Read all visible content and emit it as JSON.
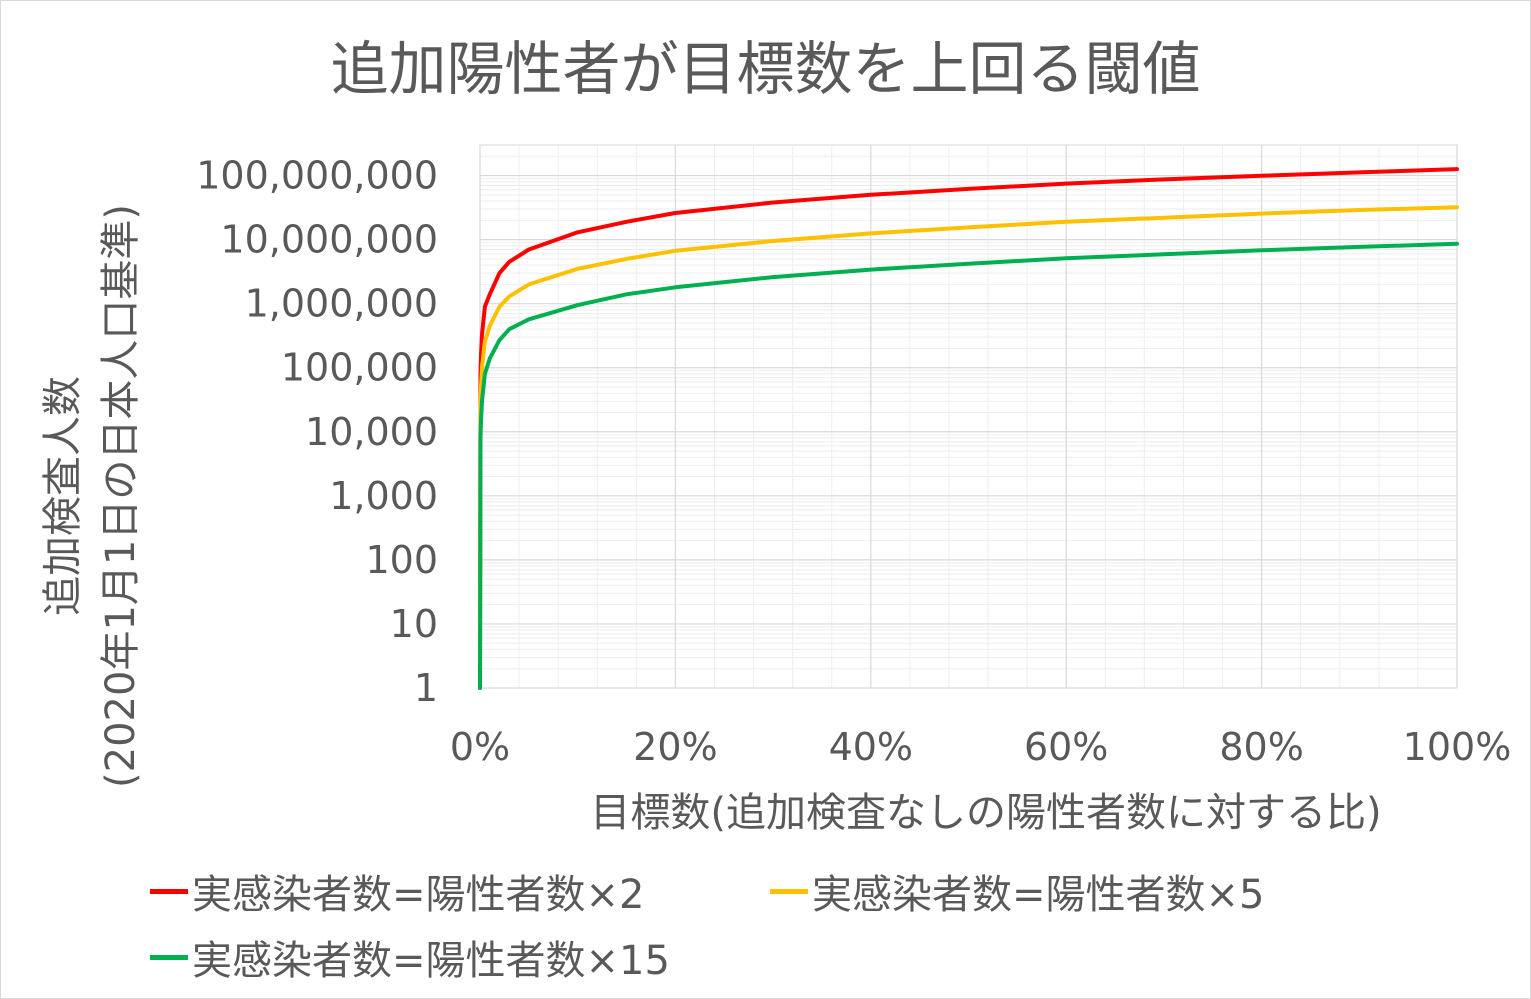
{
  "chart_data": {
    "type": "line",
    "title": "追加陽性者が目標数を上回る閾値",
    "ylabel_line1": "追加検査人数",
    "ylabel_line2": "(2020年1月1日の日本人口基準)",
    "xlabel": "目標数(追加検査なしの陽性者数に対する比)",
    "y_scale": "log",
    "ylim": [
      1,
      300000000
    ],
    "xlim": [
      0,
      1
    ],
    "y_ticks": [
      1,
      10,
      100,
      1000,
      10000,
      100000,
      1000000,
      10000000,
      100000000
    ],
    "y_tick_labels": [
      "1",
      "10",
      "100",
      "1,000",
      "10,000",
      "100,000",
      "1,000,000",
      "10,000,000",
      "100,000,000"
    ],
    "x_ticks": [
      0,
      0.2,
      0.4,
      0.6,
      0.8,
      1.0
    ],
    "x_tick_labels": [
      "0%",
      "20%",
      "40%",
      "60%",
      "80%",
      "100%"
    ],
    "grid": "major and minor",
    "legend_position": "bottom",
    "x": [
      0,
      0.0005,
      0.001,
      0.002,
      0.005,
      0.01,
      0.02,
      0.03,
      0.05,
      0.1,
      0.15,
      0.2,
      0.3,
      0.4,
      0.5,
      0.6,
      0.7,
      0.8,
      0.9,
      1.0
    ],
    "series": [
      {
        "name": "実感染者数=陽性者数×2",
        "color": "#ff0000",
        "values": [
          1,
          80000,
          160000,
          330000,
          900000,
          1400000,
          3000000,
          4500000,
          7000000,
          13000000,
          19000000,
          26000000,
          38000000,
          50000000,
          62000000,
          75000000,
          87000000,
          99000000,
          112000000,
          126000000
        ]
      },
      {
        "name": "実感染者数=陽性者数×5",
        "color": "#ffc000",
        "values": [
          1,
          25000,
          50000,
          100000,
          260000,
          450000,
          900000,
          1300000,
          2000000,
          3500000,
          5000000,
          6700000,
          9500000,
          12500000,
          15500000,
          19000000,
          22000000,
          25500000,
          29000000,
          32000000
        ]
      },
      {
        "name": "実感染者数=陽性者数×15",
        "color": "#00b050",
        "values": [
          1,
          8000,
          15000,
          30000,
          80000,
          140000,
          270000,
          400000,
          570000,
          950000,
          1400000,
          1800000,
          2600000,
          3400000,
          4200000,
          5100000,
          5900000,
          6800000,
          7700000,
          8600000
        ]
      }
    ]
  }
}
